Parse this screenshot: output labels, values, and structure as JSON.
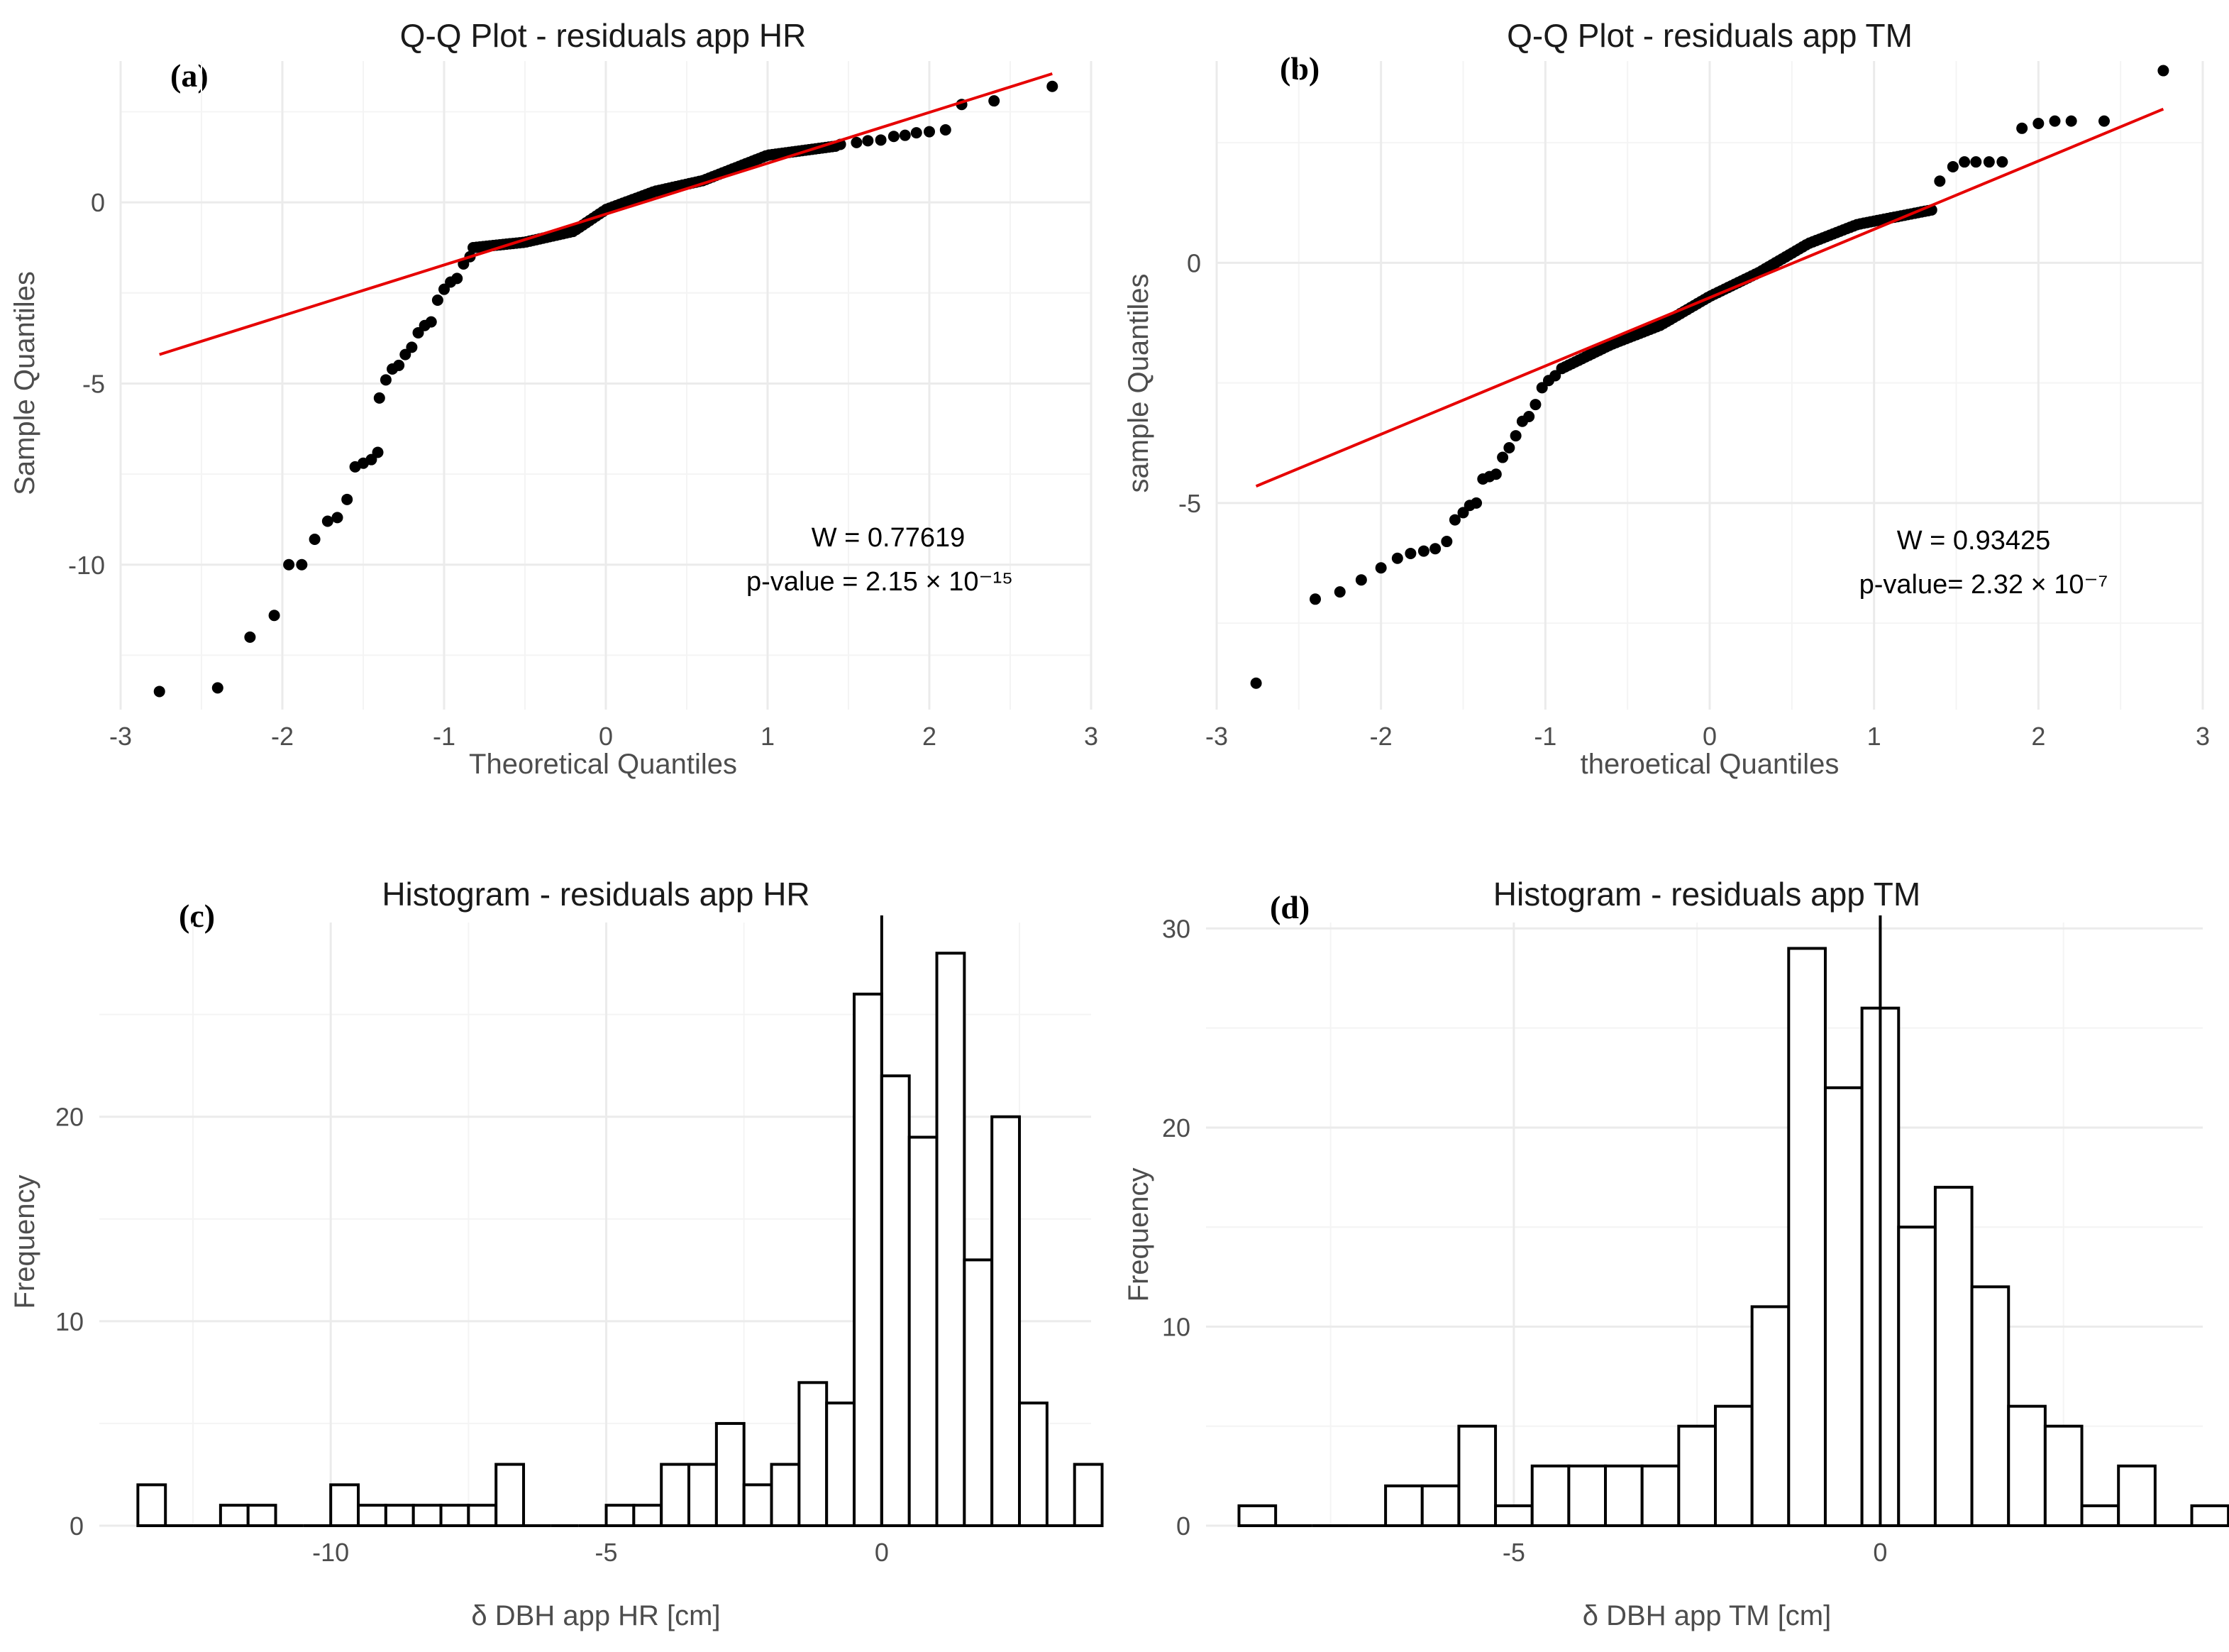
{
  "chart_data": [
    {
      "id": "a",
      "type": "scatter",
      "panel_label": "(a)",
      "title": "Q-Q Plot - residuals app HR",
      "xlabel": "Theoretical Quantiles",
      "ylabel": "Sample Quantiles",
      "xlim": [
        -3,
        3
      ],
      "ylim": [
        -14,
        3.9
      ],
      "x_ticks": [
        -3,
        -2,
        -1,
        0,
        1,
        2,
        3
      ],
      "y_ticks": [
        -10,
        -5,
        0
      ],
      "x_tick_labels": [
        "-3",
        "-2",
        "-1",
        "0",
        "1",
        "2",
        "3"
      ],
      "y_tick_labels": [
        "-10",
        "-5",
        "0"
      ],
      "reference_line": {
        "x": [
          -2.76,
          2.76
        ],
        "y": [
          -4.2,
          3.55
        ],
        "color": "#e60000"
      },
      "annotations": {
        "w": "W = 0.77619",
        "p": "p-value = 2.15 × 10⁻¹⁵"
      },
      "point_color": "#000000",
      "points_sparse": [
        [
          -2.76,
          -13.5
        ],
        [
          -2.4,
          -13.4
        ],
        [
          -2.2,
          -12.0
        ],
        [
          -2.05,
          -11.4
        ],
        [
          -1.96,
          -10.0
        ],
        [
          -1.88,
          -10.0
        ],
        [
          -1.8,
          -9.3
        ],
        [
          -1.72,
          -8.8
        ],
        [
          -1.66,
          -8.7
        ],
        [
          -1.6,
          -8.2
        ],
        [
          -1.55,
          -7.3
        ],
        [
          -1.5,
          -7.2
        ],
        [
          -1.45,
          -7.1
        ],
        [
          -1.41,
          -6.9
        ],
        [
          -1.4,
          -5.4
        ],
        [
          -1.36,
          -4.9
        ],
        [
          -1.32,
          -4.6
        ],
        [
          -1.28,
          -4.5
        ],
        [
          -1.24,
          -4.2
        ],
        [
          -1.2,
          -4.0
        ],
        [
          -1.16,
          -3.6
        ],
        [
          -1.12,
          -3.4
        ],
        [
          -1.08,
          -3.3
        ],
        [
          -1.04,
          -2.7
        ],
        [
          -1.0,
          -2.4
        ],
        [
          -0.96,
          -2.2
        ],
        [
          -0.92,
          -2.1
        ],
        [
          -0.88,
          -1.7
        ],
        [
          -0.84,
          -1.5
        ],
        [
          1.45,
          1.6
        ],
        [
          1.55,
          1.65
        ],
        [
          1.62,
          1.7
        ],
        [
          1.7,
          1.72
        ],
        [
          1.78,
          1.82
        ],
        [
          1.85,
          1.85
        ],
        [
          1.92,
          1.92
        ],
        [
          2.0,
          1.95
        ],
        [
          2.1,
          2.0
        ],
        [
          2.2,
          2.7
        ],
        [
          2.4,
          2.8
        ],
        [
          2.76,
          3.2
        ]
      ],
      "dense_segments": [
        {
          "x_from": -0.82,
          "x_to": 1.42,
          "count": 110,
          "knots_x": [
            -0.82,
            -0.5,
            -0.2,
            0.0,
            0.3,
            0.6,
            1.0,
            1.42
          ],
          "knots_y": [
            -1.25,
            -1.1,
            -0.8,
            -0.2,
            0.3,
            0.6,
            1.3,
            1.55
          ]
        }
      ]
    },
    {
      "id": "b",
      "type": "scatter",
      "panel_label": "(b)",
      "title": "Q-Q Plot - residuals app TM",
      "xlabel": "theroetical Quantiles",
      "ylabel": "sample Quantiles",
      "xlim": [
        -3,
        3
      ],
      "ylim": [
        -9.3,
        4.2
      ],
      "x_ticks": [
        -3,
        -2,
        -1,
        0,
        1,
        2,
        3
      ],
      "y_ticks": [
        -5,
        0
      ],
      "x_tick_labels": [
        "-3",
        "-2",
        "-1",
        "0",
        "1",
        "2",
        "3"
      ],
      "y_tick_labels": [
        "-5",
        "0"
      ],
      "reference_line": {
        "x": [
          -2.76,
          2.76
        ],
        "y": [
          -4.65,
          3.2
        ],
        "color": "#e60000"
      },
      "annotations": {
        "w": "W = 0.93425",
        "p": "p-value= 2.32 × 10⁻⁷"
      },
      "point_color": "#000000",
      "points_sparse": [
        [
          -2.76,
          -8.75
        ],
        [
          -2.4,
          -7.0
        ],
        [
          -2.25,
          -6.85
        ],
        [
          -2.12,
          -6.6
        ],
        [
          -2.0,
          -6.35
        ],
        [
          -1.9,
          -6.15
        ],
        [
          -1.82,
          -6.05
        ],
        [
          -1.74,
          -6.0
        ],
        [
          -1.67,
          -5.95
        ],
        [
          -1.6,
          -5.8
        ],
        [
          -1.55,
          -5.35
        ],
        [
          -1.5,
          -5.2
        ],
        [
          -1.46,
          -5.05
        ],
        [
          -1.42,
          -5.0
        ],
        [
          -1.38,
          -4.5
        ],
        [
          -1.34,
          -4.45
        ],
        [
          -1.3,
          -4.4
        ],
        [
          -1.26,
          -4.05
        ],
        [
          -1.22,
          -3.85
        ],
        [
          -1.18,
          -3.6
        ],
        [
          -1.14,
          -3.3
        ],
        [
          -1.1,
          -3.2
        ],
        [
          -1.06,
          -2.95
        ],
        [
          -1.02,
          -2.6
        ],
        [
          -0.98,
          -2.45
        ],
        [
          -0.94,
          -2.35
        ],
        [
          1.4,
          1.7
        ],
        [
          1.48,
          2.0
        ],
        [
          1.55,
          2.1
        ],
        [
          1.62,
          2.1
        ],
        [
          1.7,
          2.1
        ],
        [
          1.78,
          2.1
        ],
        [
          1.9,
          2.8
        ],
        [
          2.0,
          2.9
        ],
        [
          2.1,
          2.95
        ],
        [
          2.2,
          2.95
        ],
        [
          2.4,
          2.95
        ],
        [
          2.76,
          4.0
        ]
      ],
      "dense_segments": [
        {
          "x_from": -0.9,
          "x_to": 1.35,
          "count": 110,
          "knots_x": [
            -0.9,
            -0.6,
            -0.3,
            0.0,
            0.3,
            0.6,
            0.9,
            1.35
          ],
          "knots_y": [
            -2.2,
            -1.7,
            -1.3,
            -0.7,
            -0.2,
            0.4,
            0.8,
            1.1
          ]
        }
      ]
    },
    {
      "id": "c",
      "type": "bar",
      "panel_label": "(c)",
      "title": "Histogram - residuals app HR",
      "xlabel": "δ DBH app HR [cm]",
      "ylabel": "Frequency",
      "xlim": [
        -14.2,
        3.8
      ],
      "ylim": [
        0,
        29.5
      ],
      "x_ticks": [
        -10,
        -5,
        0
      ],
      "y_ticks": [
        0,
        10,
        20
      ],
      "x_tick_labels": [
        "-10",
        "-5",
        "0"
      ],
      "y_tick_labels": [
        "0",
        "10",
        "20"
      ],
      "bin_start": -13.5,
      "bin_width": 0.5,
      "values": [
        2,
        0,
        0,
        1,
        1,
        0,
        0,
        2,
        1,
        1,
        1,
        1,
        1,
        3,
        0,
        0,
        0,
        1,
        1,
        3,
        3,
        5,
        2,
        3,
        7,
        6,
        26,
        22,
        19,
        28,
        13,
        20,
        6,
        0,
        3
      ],
      "vline_x": 0,
      "fill": "#ffffff",
      "stroke": "#000000"
    },
    {
      "id": "d",
      "type": "bar",
      "panel_label": "(d)",
      "title": "Histogram - residuals app TM",
      "xlabel": "δ DBH app TM [cm]",
      "ylabel": "Frequency",
      "xlim": [
        -9.2,
        4.4
      ],
      "ylim": [
        0,
        30.3
      ],
      "x_ticks": [
        -5,
        0
      ],
      "y_ticks": [
        0,
        10,
        20,
        30
      ],
      "x_tick_labels": [
        "-5",
        "0"
      ],
      "y_tick_labels": [
        "0",
        "10",
        "20",
        "30"
      ],
      "bin_start": -8.75,
      "bin_width": 0.5,
      "values": [
        1,
        0,
        0,
        0,
        2,
        2,
        5,
        1,
        3,
        3,
        3,
        3,
        5,
        6,
        11,
        29,
        22,
        26,
        15,
        17,
        12,
        6,
        5,
        1,
        3,
        0,
        1
      ],
      "vline_x": 0,
      "fill": "#ffffff",
      "stroke": "#000000"
    }
  ]
}
